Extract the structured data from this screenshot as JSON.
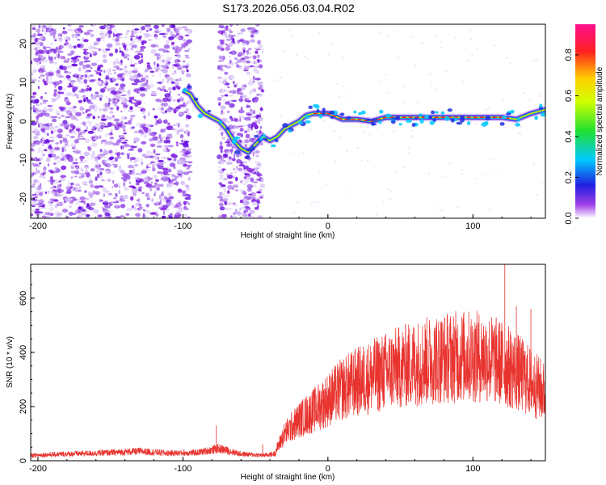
{
  "title": "S173.2026.056.03.04.R02",
  "chart_data": [
    {
      "type": "heatmap",
      "xlabel": "Height of straight line (km)",
      "ylabel": "Frequency (Hz)",
      "xlim": [
        -205,
        150
      ],
      "ylim": [
        -25,
        25
      ],
      "xticks": [
        -200,
        -100,
        0,
        100
      ],
      "yticks": [
        -20,
        -10,
        0,
        10,
        20
      ],
      "colorbar": {
        "label": "Normalized spectral amplitude",
        "range": [
          0,
          0.95
        ],
        "ticks": [
          0,
          0.2,
          0.4,
          0.6,
          0.8
        ]
      },
      "signal_track": [
        [
          -100,
          8
        ],
        [
          -95,
          7
        ],
        [
          -90,
          4
        ],
        [
          -85,
          2
        ],
        [
          -80,
          1
        ],
        [
          -75,
          0
        ],
        [
          -70,
          -2
        ],
        [
          -65,
          -5
        ],
        [
          -60,
          -7
        ],
        [
          -55,
          -8
        ],
        [
          -50,
          -6
        ],
        [
          -45,
          -4
        ],
        [
          -40,
          -5
        ],
        [
          -35,
          -4
        ],
        [
          -30,
          -2
        ],
        [
          -25,
          -1
        ],
        [
          -20,
          0
        ],
        [
          -15,
          1.5
        ],
        [
          -10,
          2
        ],
        [
          0,
          2
        ],
        [
          10,
          0.5
        ],
        [
          20,
          0.5
        ],
        [
          30,
          0
        ],
        [
          40,
          1
        ],
        [
          60,
          1
        ],
        [
          80,
          1
        ],
        [
          100,
          1
        ],
        [
          110,
          1
        ],
        [
          120,
          1
        ],
        [
          130,
          0.5
        ],
        [
          140,
          2
        ],
        [
          150,
          3
        ]
      ]
    },
    {
      "type": "line",
      "xlabel": "Height of straight line (km)",
      "ylabel": "SNR (10 * v/v)",
      "xlim": [
        -205,
        150
      ],
      "ylim": [
        0,
        725
      ],
      "xticks": [
        -200,
        -100,
        0,
        100
      ],
      "yticks": [
        0,
        200,
        400,
        600
      ],
      "color": "#e8332e",
      "envelope": [
        [
          -205,
          20
        ],
        [
          -180,
          25
        ],
        [
          -150,
          30
        ],
        [
          -130,
          35
        ],
        [
          -110,
          28
        ],
        [
          -90,
          30
        ],
        [
          -75,
          45
        ],
        [
          -60,
          25
        ],
        [
          -45,
          20
        ],
        [
          -37,
          25
        ],
        [
          -30,
          100
        ],
        [
          -20,
          150
        ],
        [
          -10,
          185
        ],
        [
          0,
          225
        ],
        [
          10,
          265
        ],
        [
          20,
          290
        ],
        [
          30,
          310
        ],
        [
          40,
          330
        ],
        [
          50,
          345
        ],
        [
          60,
          360
        ],
        [
          70,
          370
        ],
        [
          80,
          380
        ],
        [
          90,
          385
        ],
        [
          100,
          385
        ],
        [
          110,
          380
        ],
        [
          120,
          360
        ],
        [
          130,
          330
        ],
        [
          140,
          290
        ],
        [
          150,
          250
        ]
      ],
      "peaks": [
        [
          -77,
          130
        ],
        [
          -45,
          60
        ],
        [
          75,
          510
        ],
        [
          122,
          730
        ],
        [
          130,
          570
        ],
        [
          140,
          560
        ]
      ]
    }
  ]
}
